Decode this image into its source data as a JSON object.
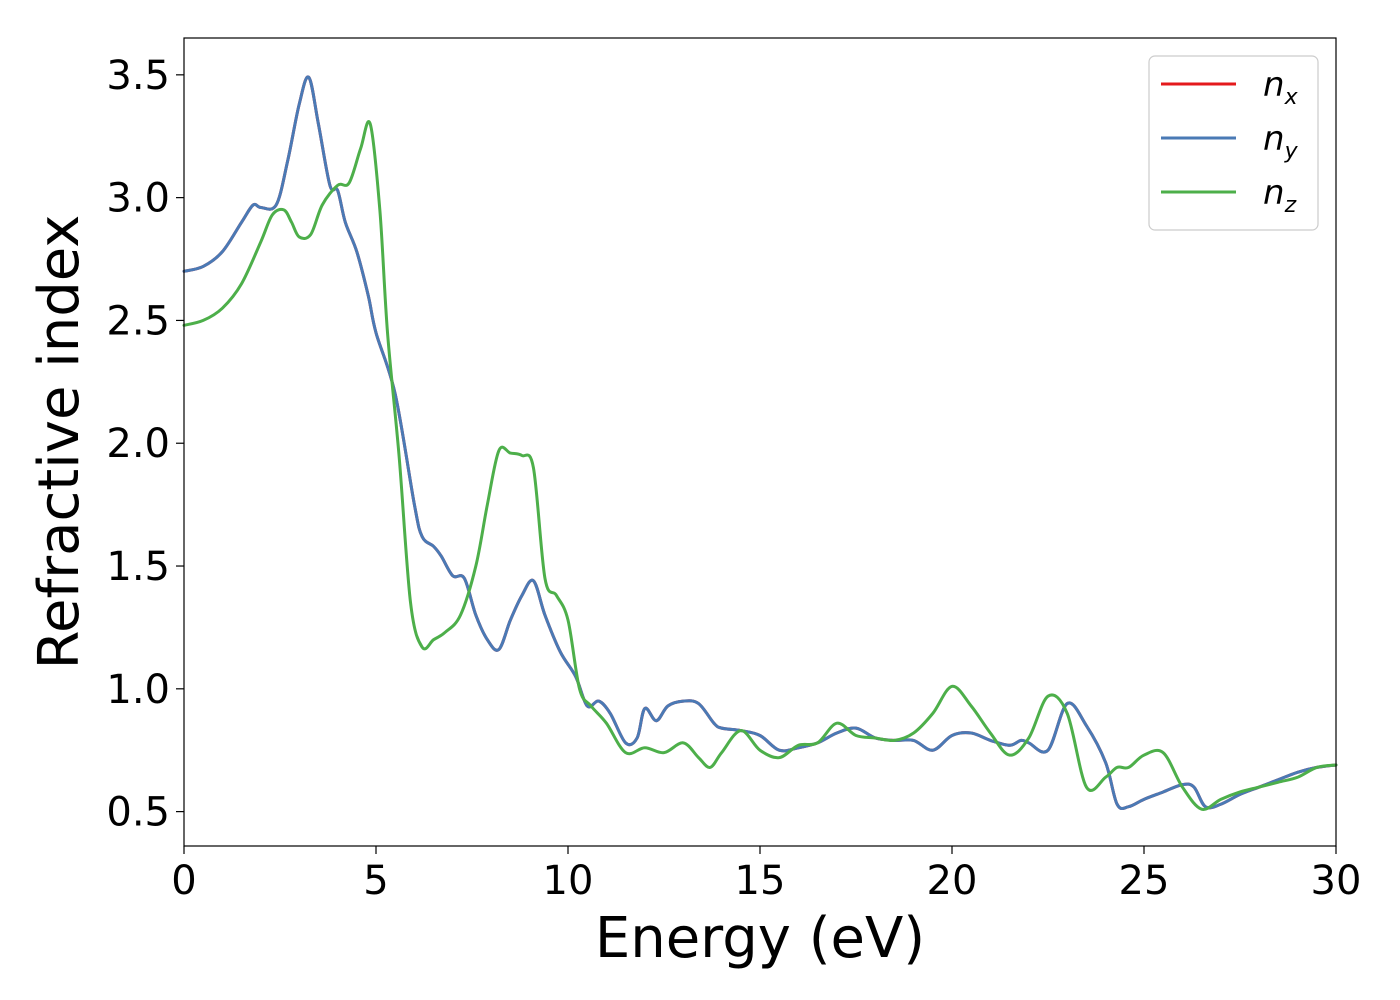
{
  "chart_data": {
    "type": "line",
    "xlabel": "Energy (eV)",
    "ylabel": "Refractive index",
    "xlim": [
      0,
      30
    ],
    "ylim": [
      0.36,
      3.65
    ],
    "xticks": [
      0,
      5,
      10,
      15,
      20,
      25,
      30
    ],
    "xtick_labels": [
      "0",
      "5",
      "10",
      "15",
      "20",
      "25",
      "30"
    ],
    "yticks": [
      0.5,
      1.0,
      1.5,
      2.0,
      2.5,
      3.0,
      3.5
    ],
    "ytick_labels": [
      "0.5",
      "1.0",
      "1.5",
      "2.0",
      "2.5",
      "3.0",
      "3.5"
    ],
    "grid": false,
    "legend_position": "top-right",
    "series": [
      {
        "name": "n",
        "subscript": "x",
        "color": "#e41a1c",
        "x": [
          0,
          0.5,
          1.0,
          1.5,
          1.8,
          2.0,
          2.4,
          2.7,
          3.0,
          3.25,
          3.5,
          3.8,
          4.0,
          4.2,
          4.5,
          4.8,
          5.0,
          5.5,
          6.0,
          6.2,
          6.5,
          6.7,
          7.0,
          7.3,
          7.6,
          7.9,
          8.2,
          8.5,
          8.8,
          9.1,
          9.4,
          9.8,
          10.2,
          10.5,
          10.8,
          11.1,
          11.5,
          11.8,
          12.0,
          12.3,
          12.6,
          13.0,
          13.4,
          13.8,
          14.0,
          14.5,
          15.0,
          15.5,
          16.0,
          16.5,
          17.0,
          17.5,
          18.0,
          18.5,
          19.0,
          19.5,
          20.0,
          20.5,
          21.0,
          21.5,
          21.8,
          22.0,
          22.5,
          23.0,
          23.5,
          24.0,
          24.3,
          24.6,
          25.0,
          25.5,
          26.0,
          26.3,
          26.6,
          27.0,
          27.5,
          28.0,
          28.5,
          29.0,
          29.5,
          30.0
        ],
        "values": [
          2.7,
          2.72,
          2.78,
          2.9,
          2.97,
          2.96,
          2.97,
          3.15,
          3.38,
          3.49,
          3.3,
          3.05,
          3.03,
          2.9,
          2.78,
          2.6,
          2.45,
          2.2,
          1.75,
          1.62,
          1.58,
          1.54,
          1.46,
          1.45,
          1.3,
          1.2,
          1.16,
          1.28,
          1.38,
          1.44,
          1.3,
          1.15,
          1.05,
          0.93,
          0.95,
          0.9,
          0.78,
          0.8,
          0.92,
          0.87,
          0.93,
          0.95,
          0.94,
          0.86,
          0.84,
          0.83,
          0.81,
          0.75,
          0.76,
          0.78,
          0.82,
          0.84,
          0.8,
          0.79,
          0.79,
          0.75,
          0.81,
          0.82,
          0.79,
          0.77,
          0.79,
          0.78,
          0.75,
          0.94,
          0.85,
          0.7,
          0.53,
          0.52,
          0.55,
          0.58,
          0.61,
          0.6,
          0.52,
          0.53,
          0.57,
          0.6,
          0.63,
          0.66,
          0.68,
          0.69
        ]
      },
      {
        "name": "n",
        "subscript": "y",
        "color": "#4a7ab5",
        "x": [
          0,
          0.5,
          1.0,
          1.5,
          1.8,
          2.0,
          2.4,
          2.7,
          3.0,
          3.25,
          3.5,
          3.8,
          4.0,
          4.2,
          4.5,
          4.8,
          5.0,
          5.5,
          6.0,
          6.2,
          6.5,
          6.7,
          7.0,
          7.3,
          7.6,
          7.9,
          8.2,
          8.5,
          8.8,
          9.1,
          9.4,
          9.8,
          10.2,
          10.5,
          10.8,
          11.1,
          11.5,
          11.8,
          12.0,
          12.3,
          12.6,
          13.0,
          13.4,
          13.8,
          14.0,
          14.5,
          15.0,
          15.5,
          16.0,
          16.5,
          17.0,
          17.5,
          18.0,
          18.5,
          19.0,
          19.5,
          20.0,
          20.5,
          21.0,
          21.5,
          21.8,
          22.0,
          22.5,
          23.0,
          23.5,
          24.0,
          24.3,
          24.6,
          25.0,
          25.5,
          26.0,
          26.3,
          26.6,
          27.0,
          27.5,
          28.0,
          28.5,
          29.0,
          29.5,
          30.0
        ],
        "values": [
          2.7,
          2.72,
          2.78,
          2.9,
          2.97,
          2.96,
          2.97,
          3.15,
          3.38,
          3.49,
          3.3,
          3.05,
          3.03,
          2.9,
          2.78,
          2.6,
          2.45,
          2.2,
          1.75,
          1.62,
          1.58,
          1.54,
          1.46,
          1.45,
          1.3,
          1.2,
          1.16,
          1.28,
          1.38,
          1.44,
          1.3,
          1.15,
          1.05,
          0.93,
          0.95,
          0.9,
          0.78,
          0.8,
          0.92,
          0.87,
          0.93,
          0.95,
          0.94,
          0.86,
          0.84,
          0.83,
          0.81,
          0.75,
          0.76,
          0.78,
          0.82,
          0.84,
          0.8,
          0.79,
          0.79,
          0.75,
          0.81,
          0.82,
          0.79,
          0.77,
          0.79,
          0.78,
          0.75,
          0.94,
          0.85,
          0.7,
          0.53,
          0.52,
          0.55,
          0.58,
          0.61,
          0.6,
          0.52,
          0.53,
          0.57,
          0.6,
          0.63,
          0.66,
          0.68,
          0.69
        ]
      },
      {
        "name": "n",
        "subscript": "z",
        "color": "#4daf4a",
        "x": [
          0,
          0.5,
          1.0,
          1.5,
          2.0,
          2.3,
          2.6,
          2.8,
          3.0,
          3.3,
          3.6,
          4.0,
          4.3,
          4.6,
          4.85,
          5.1,
          5.3,
          5.6,
          5.9,
          6.2,
          6.5,
          6.8,
          7.2,
          7.6,
          7.9,
          8.2,
          8.5,
          8.8,
          9.1,
          9.4,
          9.7,
          10.0,
          10.3,
          10.6,
          11.0,
          11.5,
          12.0,
          12.5,
          13.0,
          13.4,
          13.7,
          14.0,
          14.5,
          15.0,
          15.5,
          16.0,
          16.5,
          17.0,
          17.5,
          18.0,
          18.5,
          19.0,
          19.5,
          20.0,
          20.5,
          21.0,
          21.5,
          22.0,
          22.5,
          23.0,
          23.5,
          24.0,
          24.3,
          24.6,
          25.0,
          25.5,
          26.0,
          26.5,
          27.0,
          27.5,
          28.0,
          28.5,
          29.0,
          29.5,
          30.0
        ],
        "values": [
          2.48,
          2.5,
          2.55,
          2.65,
          2.82,
          2.93,
          2.95,
          2.9,
          2.84,
          2.85,
          2.97,
          3.05,
          3.06,
          3.2,
          3.3,
          2.95,
          2.45,
          1.95,
          1.35,
          1.17,
          1.2,
          1.23,
          1.3,
          1.5,
          1.75,
          1.97,
          1.96,
          1.95,
          1.9,
          1.45,
          1.38,
          1.28,
          1.0,
          0.93,
          0.86,
          0.74,
          0.76,
          0.74,
          0.78,
          0.72,
          0.68,
          0.74,
          0.83,
          0.75,
          0.72,
          0.77,
          0.78,
          0.86,
          0.81,
          0.8,
          0.79,
          0.82,
          0.9,
          1.01,
          0.93,
          0.82,
          0.73,
          0.8,
          0.97,
          0.9,
          0.6,
          0.64,
          0.68,
          0.68,
          0.73,
          0.74,
          0.6,
          0.51,
          0.55,
          0.58,
          0.6,
          0.62,
          0.64,
          0.68,
          0.69
        ]
      }
    ]
  }
}
